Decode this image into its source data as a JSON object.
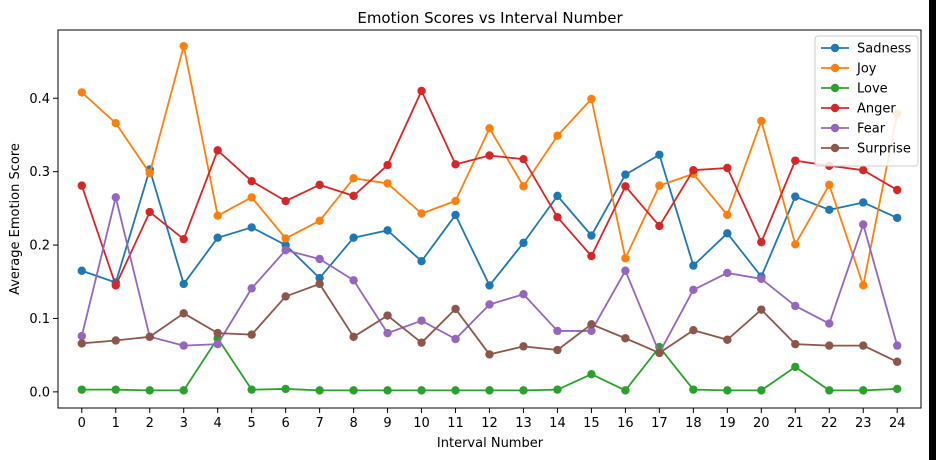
{
  "colors": {
    "figure_background": "#ffffff",
    "page_background": "#000000",
    "axes_edge": "#000000"
  },
  "chart_data": {
    "type": "line",
    "title": "Emotion Scores vs Interval Number",
    "xlabel": "Interval Number",
    "ylabel": "Average Emotion Score",
    "x": [
      0,
      1,
      2,
      3,
      4,
      5,
      6,
      7,
      8,
      9,
      10,
      11,
      12,
      13,
      14,
      15,
      16,
      17,
      18,
      19,
      20,
      21,
      22,
      23,
      24
    ],
    "x_tick_labels": [
      "0",
      "1",
      "2",
      "3",
      "4",
      "5",
      "6",
      "7",
      "8",
      "9",
      "10",
      "11",
      "12",
      "13",
      "14",
      "15",
      "16",
      "17",
      "18",
      "19",
      "20",
      "21",
      "22",
      "23",
      "24"
    ],
    "y_ticks": [
      0.0,
      0.1,
      0.2,
      0.3,
      0.4
    ],
    "y_tick_labels": [
      "0.0",
      "0.1",
      "0.2",
      "0.3",
      "0.4"
    ],
    "xlim": [
      -0.7,
      24.7
    ],
    "ylim": [
      -0.022,
      0.493
    ],
    "grid": false,
    "legend_position": "top-right",
    "marker": "circle",
    "series": [
      {
        "name": "Sadness",
        "color": "#1f77b4",
        "values": [
          0.165,
          0.149,
          0.303,
          0.147,
          0.21,
          0.224,
          0.2,
          0.155,
          0.21,
          0.22,
          0.178,
          0.241,
          0.145,
          0.203,
          0.267,
          0.213,
          0.296,
          0.323,
          0.172,
          0.216,
          0.157,
          0.266,
          0.248,
          0.258,
          0.237
        ]
      },
      {
        "name": "Joy",
        "color": "#ff7f0e",
        "values": [
          0.408,
          0.366,
          0.298,
          0.471,
          0.24,
          0.265,
          0.209,
          0.233,
          0.291,
          0.284,
          0.243,
          0.26,
          0.359,
          0.28,
          0.349,
          0.399,
          0.182,
          0.281,
          0.297,
          0.241,
          0.369,
          0.201,
          0.282,
          0.145,
          0.379
        ]
      },
      {
        "name": "Love",
        "color": "#2ca02c",
        "values": [
          0.003,
          0.003,
          0.002,
          0.002,
          0.073,
          0.003,
          0.004,
          0.002,
          0.002,
          0.002,
          0.002,
          0.002,
          0.002,
          0.002,
          0.003,
          0.024,
          0.002,
          0.061,
          0.003,
          0.002,
          0.002,
          0.034,
          0.002,
          0.002,
          0.004
        ]
      },
      {
        "name": "Anger",
        "color": "#d62728",
        "values": [
          0.281,
          0.145,
          0.245,
          0.208,
          0.329,
          0.287,
          0.26,
          0.282,
          0.267,
          0.309,
          0.41,
          0.31,
          0.322,
          0.317,
          0.238,
          0.185,
          0.28,
          0.226,
          0.302,
          0.305,
          0.204,
          0.315,
          0.308,
          0.302,
          0.275
        ]
      },
      {
        "name": "Fear",
        "color": "#9467bd",
        "values": [
          0.076,
          0.265,
          0.075,
          0.063,
          0.065,
          0.141,
          0.193,
          0.181,
          0.152,
          0.08,
          0.097,
          0.072,
          0.119,
          0.133,
          0.083,
          0.083,
          0.165,
          0.053,
          0.139,
          0.162,
          0.154,
          0.117,
          0.093,
          0.228,
          0.063
        ]
      },
      {
        "name": "Surprise",
        "color": "#8c564b",
        "values": [
          0.066,
          0.07,
          0.075,
          0.107,
          0.08,
          0.078,
          0.13,
          0.147,
          0.075,
          0.104,
          0.067,
          0.113,
          0.051,
          0.062,
          0.057,
          0.092,
          0.073,
          0.053,
          0.084,
          0.071,
          0.112,
          0.065,
          0.063,
          0.063,
          0.041
        ]
      }
    ]
  }
}
